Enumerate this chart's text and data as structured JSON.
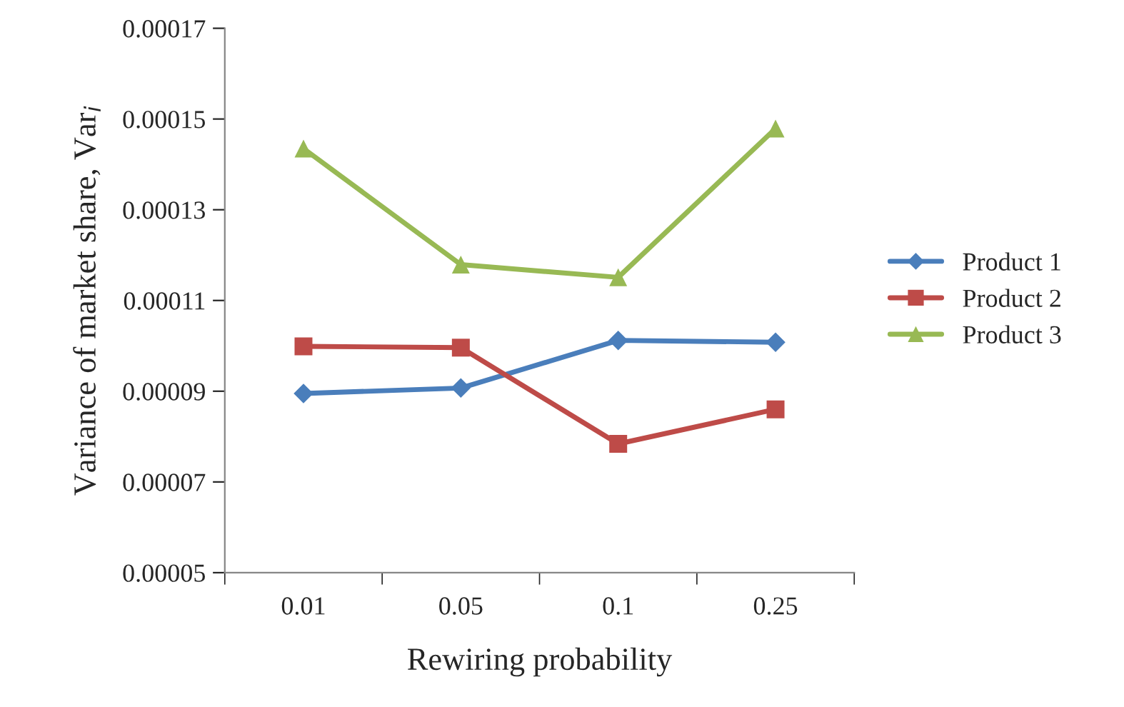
{
  "chart_data": {
    "type": "line",
    "xlabel": "Rewiring probability",
    "ylabel": "Variance of market share, Var$_{i}$",
    "categories": [
      "0.01",
      "0.05",
      "0.1",
      "0.25"
    ],
    "series": [
      {
        "name": "Product 1",
        "color": "#4a7ebb",
        "marker": "diamond",
        "values": [
          8.95e-05,
          9.07e-05,
          0.0001012,
          0.0001008
        ]
      },
      {
        "name": "Product 2",
        "color": "#be4b48",
        "marker": "square",
        "values": [
          9.99e-05,
          9.96e-05,
          7.84e-05,
          8.6e-05
        ]
      },
      {
        "name": "Product 3",
        "color": "#98b954",
        "marker": "triangle",
        "values": [
          0.0001435,
          0.0001179,
          0.0001151,
          0.0001479
        ]
      }
    ],
    "ylim": [
      5e-05,
      0.00017
    ],
    "yticks": [
      {
        "value": 5e-05,
        "label": "0.00005"
      },
      {
        "value": 7e-05,
        "label": "0.00007"
      },
      {
        "value": 9e-05,
        "label": "0.00009"
      },
      {
        "value": 0.00011,
        "label": "0.00011"
      },
      {
        "value": 0.00013,
        "label": "0.00013"
      },
      {
        "value": 0.00015,
        "label": "0.00015"
      },
      {
        "value": 0.00017,
        "label": "0.00017"
      }
    ],
    "grid": false,
    "legend": "right",
    "line_style": "solid"
  }
}
